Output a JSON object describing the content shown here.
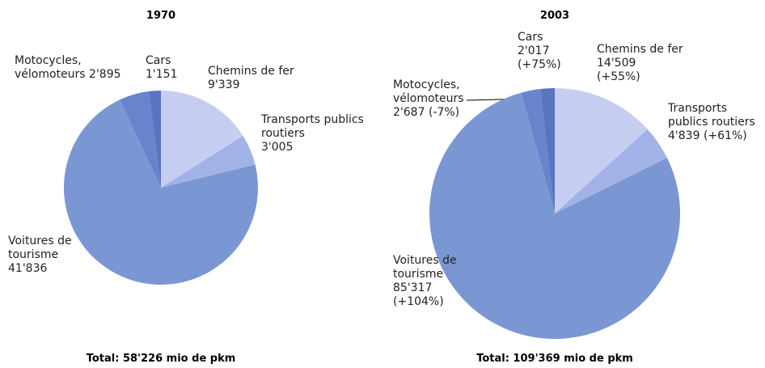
{
  "chart_data": [
    {
      "type": "pie",
      "title": "1970",
      "total": "Total: 58'226 mio de pkm",
      "categories": [
        "Chemins de fer",
        "Transports publics routiers",
        "Voitures de tourisme",
        "Motocycles, vélomoteurs",
        "Cars"
      ],
      "values": [
        9339,
        3005,
        41836,
        2895,
        1151
      ],
      "value_labels": [
        "9'339",
        "3'005",
        "41'836",
        "2'895",
        "1'151"
      ],
      "colors": [
        "#c5cdf0",
        "#a3b2e6",
        "#7a97d4",
        "#6784cc",
        "#5a74c2"
      ]
    },
    {
      "type": "pie",
      "title": "2003",
      "total": "Total: 109'369 mio de pkm",
      "categories": [
        "Chemins de fer",
        "Transports publics routiers",
        "Voitures de tourisme",
        "Motocycles, vélomoteurs",
        "Cars"
      ],
      "values": [
        14509,
        4839,
        85317,
        2687,
        2017
      ],
      "value_labels": [
        "14'509",
        "4'839",
        "85'317",
        "2'687",
        "2'017"
      ],
      "change_labels": [
        "(+55%)",
        "(+61%)",
        "(+104%)",
        "(-7%)",
        "(+75%)"
      ],
      "colors": [
        "#c5cdf0",
        "#a3b2e6",
        "#7a97d4",
        "#6784cc",
        "#5a74c2"
      ]
    }
  ]
}
